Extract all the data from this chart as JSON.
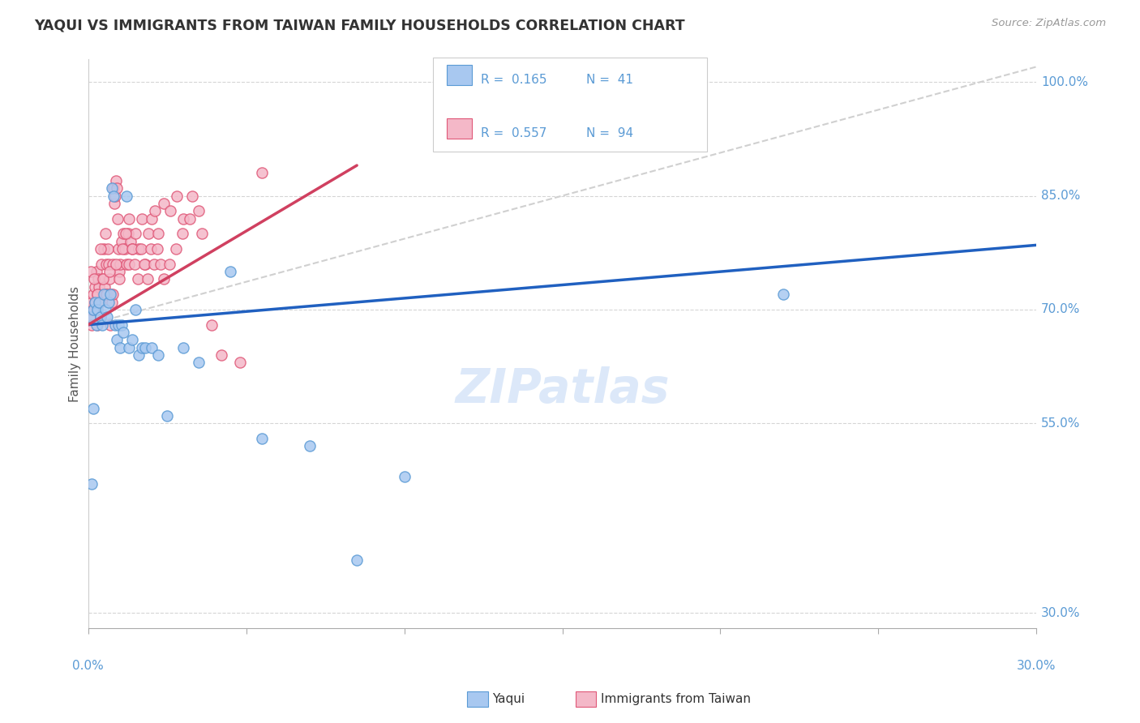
{
  "title": "YAQUI VS IMMIGRANTS FROM TAIWAN FAMILY HOUSEHOLDS CORRELATION CHART",
  "source": "Source: ZipAtlas.com",
  "ylabel": "Family Households",
  "yaxis_labels": [
    "100.0%",
    "85.0%",
    "70.0%",
    "55.0%",
    "30.0%"
  ],
  "yaxis_vals": [
    100.0,
    85.0,
    70.0,
    55.0,
    30.0
  ],
  "xlim": [
    0.0,
    30.0
  ],
  "ylim": [
    28.0,
    103.0
  ],
  "legend_r1": "0.165",
  "legend_n1": "41",
  "legend_r2": "0.557",
  "legend_n2": "94",
  "color_yaqui_fill": "#a8c8f0",
  "color_yaqui_edge": "#5b9bd5",
  "color_taiwan_fill": "#f4b8c8",
  "color_taiwan_edge": "#e05878",
  "color_yaqui_line": "#2060c0",
  "color_taiwan_line": "#d04060",
  "color_ref_line": "#d0d0d0",
  "background_color": "#ffffff",
  "watermark": "ZIPatlas",
  "yaqui_x": [
    0.05,
    0.1,
    0.15,
    0.2,
    0.25,
    0.3,
    0.35,
    0.4,
    0.45,
    0.5,
    0.55,
    0.6,
    0.65,
    0.7,
    0.75,
    0.8,
    0.85,
    0.9,
    0.95,
    1.0,
    1.05,
    1.1,
    1.2,
    1.3,
    1.4,
    1.5,
    1.6,
    1.7,
    1.8,
    2.0,
    2.2,
    2.5,
    3.0,
    3.5,
    4.5,
    5.5,
    7.0,
    8.5,
    10.0,
    22.0,
    0.15
  ],
  "yaqui_y": [
    69.0,
    47.0,
    70.0,
    71.0,
    68.0,
    70.0,
    71.0,
    69.0,
    68.0,
    72.0,
    70.0,
    69.0,
    71.0,
    72.0,
    86.0,
    85.0,
    68.0,
    66.0,
    68.0,
    65.0,
    68.0,
    67.0,
    85.0,
    65.0,
    66.0,
    70.0,
    64.0,
    65.0,
    65.0,
    65.0,
    64.0,
    56.0,
    65.0,
    63.0,
    75.0,
    53.0,
    52.0,
    37.0,
    48.0,
    72.0,
    57.0
  ],
  "taiwan_x": [
    0.05,
    0.07,
    0.1,
    0.12,
    0.15,
    0.17,
    0.2,
    0.22,
    0.25,
    0.28,
    0.3,
    0.32,
    0.35,
    0.37,
    0.4,
    0.42,
    0.45,
    0.47,
    0.5,
    0.52,
    0.55,
    0.57,
    0.6,
    0.62,
    0.65,
    0.67,
    0.7,
    0.72,
    0.75,
    0.77,
    0.8,
    0.82,
    0.85,
    0.87,
    0.9,
    0.92,
    0.95,
    0.97,
    1.0,
    1.05,
    1.1,
    1.15,
    1.2,
    1.25,
    1.3,
    1.35,
    1.4,
    1.5,
    1.6,
    1.7,
    1.8,
    1.9,
    2.0,
    2.1,
    2.2,
    2.4,
    2.6,
    2.8,
    3.0,
    3.3,
    3.6,
    3.9,
    4.2,
    4.8,
    5.5,
    0.08,
    0.18,
    0.28,
    0.38,
    0.48,
    0.58,
    0.68,
    0.78,
    0.88,
    0.98,
    1.08,
    1.18,
    1.28,
    1.38,
    1.48,
    1.58,
    1.68,
    1.78,
    1.88,
    1.98,
    2.08,
    2.18,
    2.28,
    2.38,
    2.58,
    2.78,
    2.98,
    3.2,
    3.5
  ],
  "taiwan_y": [
    69.0,
    70.0,
    68.0,
    71.0,
    72.0,
    70.0,
    73.0,
    71.0,
    75.0,
    72.0,
    68.0,
    74.0,
    73.0,
    71.0,
    69.0,
    76.0,
    74.0,
    72.0,
    78.0,
    73.0,
    80.0,
    76.0,
    72.0,
    78.0,
    76.0,
    74.0,
    68.0,
    72.0,
    71.0,
    76.0,
    86.0,
    84.0,
    85.0,
    87.0,
    86.0,
    82.0,
    78.0,
    75.0,
    76.0,
    79.0,
    80.0,
    78.0,
    76.0,
    80.0,
    82.0,
    79.0,
    78.0,
    80.0,
    78.0,
    82.0,
    76.0,
    80.0,
    82.0,
    83.0,
    80.0,
    84.0,
    83.0,
    85.0,
    82.0,
    85.0,
    80.0,
    68.0,
    64.0,
    63.0,
    88.0,
    75.0,
    74.0,
    72.0,
    78.0,
    74.0,
    72.0,
    75.0,
    72.0,
    76.0,
    74.0,
    78.0,
    80.0,
    76.0,
    78.0,
    76.0,
    74.0,
    78.0,
    76.0,
    74.0,
    78.0,
    76.0,
    78.0,
    76.0,
    74.0,
    76.0,
    78.0,
    80.0,
    82.0,
    83.0
  ]
}
